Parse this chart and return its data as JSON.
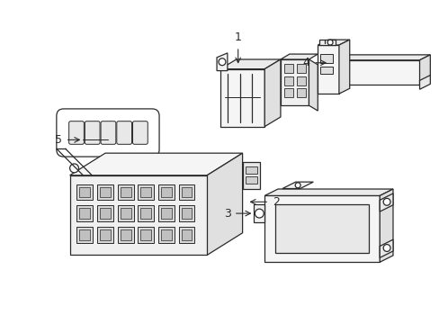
{
  "background_color": "#ffffff",
  "line_color": "#2a2a2a",
  "line_width": 0.9,
  "fig_width": 4.89,
  "fig_height": 3.6,
  "dpi": 100
}
